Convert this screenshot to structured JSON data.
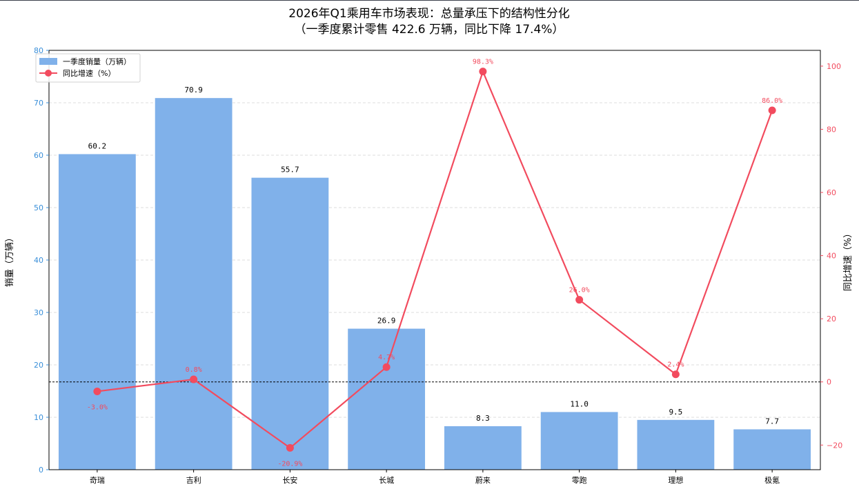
{
  "chart_data": {
    "type": "bar",
    "title": "2026年Q1乘用车市场表现：总量承压下的结构性分化",
    "subtitle": "（一季度累计零售 422.6 万辆，同比下降 17.4%）",
    "categories": [
      "奇瑞",
      "吉利",
      "长安",
      "长城",
      "蔚来",
      "零跑",
      "理想",
      "极氪"
    ],
    "series": [
      {
        "name": "一季度销量（万辆）",
        "type": "bar",
        "axis": "left",
        "values": [
          60.2,
          70.9,
          55.7,
          26.9,
          8.3,
          11.0,
          9.5,
          7.7
        ],
        "labels": [
          "60.2",
          "70.9",
          "55.7",
          "26.9",
          "8.3",
          "11.0",
          "9.5",
          "7.7"
        ],
        "color": "#80b1ea"
      },
      {
        "name": "同比增速（%）",
        "type": "line",
        "axis": "right",
        "values": [
          -3.0,
          0.8,
          -20.9,
          4.7,
          98.3,
          26.0,
          2.4,
          86.0
        ],
        "labels": [
          "-3.0%",
          "0.8%",
          "-20.9%",
          "4.7%",
          "98.3%",
          "26.0%",
          "2.4%",
          "86.0%"
        ],
        "color": "#f24b5e"
      }
    ],
    "ylabel": "销量（万辆）",
    "y2label": "同比增速（%）",
    "ylim": [
      0,
      80
    ],
    "y2lim": [
      -27.8,
      105
    ],
    "yticks": [
      0,
      10,
      20,
      30,
      40,
      50,
      60,
      70,
      80
    ],
    "y2ticks": [
      -20,
      0,
      20,
      40,
      60,
      80,
      100
    ],
    "reference_line_y2": 0,
    "grid": "horizontal-dashed",
    "legend_position": "top-left",
    "left_axis_color": "#3a8fd9",
    "right_axis_color": "#f24b5e"
  }
}
